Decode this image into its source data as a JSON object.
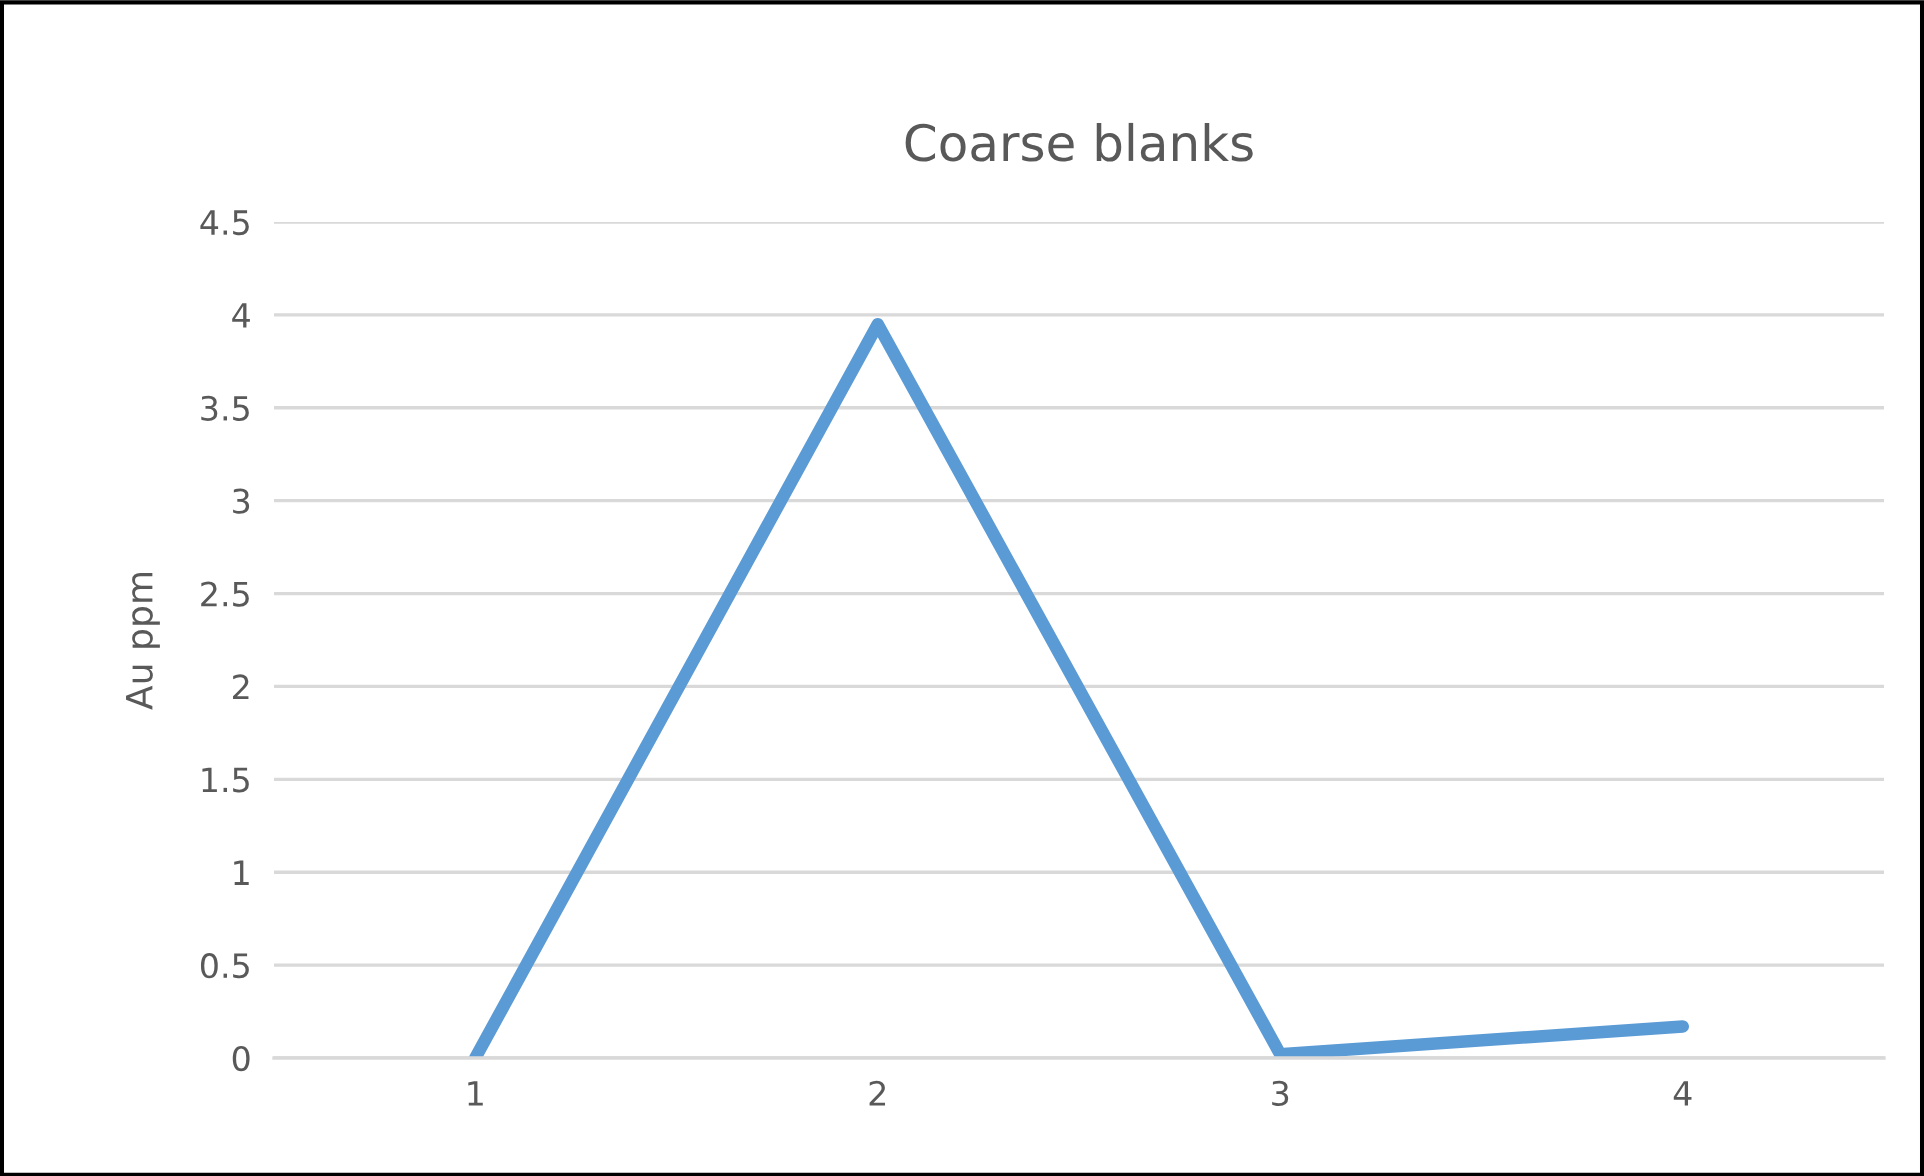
{
  "chart_data": {
    "type": "line",
    "title": "Coarse blanks",
    "ylabel": "Au ppm",
    "categories": [
      "1",
      "2",
      "3",
      "4"
    ],
    "series": [
      {
        "color": "#5b9bd5",
        "values": [
          0,
          3.95,
          0.02,
          0.17
        ]
      }
    ],
    "ylim": [
      0,
      4.5
    ],
    "yticks": [
      0,
      0.5,
      1,
      1.5,
      2,
      2.5,
      3,
      3.5,
      4,
      4.5
    ],
    "grid": "y",
    "marker": "none",
    "line_style": "solid"
  }
}
